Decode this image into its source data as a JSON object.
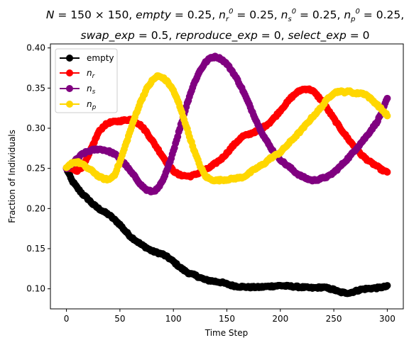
{
  "chart_data": {
    "type": "line",
    "title_line1": "N = 150 × 150, empty = 0.25, n_r^0 = 0.25, n_s^0 = 0.25, n_p^0 = 0.25,",
    "title_line2": "swap_exp = 0.5, reproduce_exp = 0, select_exp = 0",
    "xlabel": "Time Step",
    "ylabel": "Fraction of Individuals",
    "xlim": [
      -15,
      315
    ],
    "ylim": [
      0.075,
      0.405
    ],
    "xticks": [
      0,
      50,
      100,
      150,
      200,
      250,
      300
    ],
    "yticks": [
      0.1,
      0.15,
      0.2,
      0.25,
      0.3,
      0.35,
      0.4
    ],
    "ytick_labels": [
      "0.10",
      "0.15",
      "0.20",
      "0.25",
      "0.30",
      "0.35",
      "0.40"
    ],
    "grid": false,
    "legend_position": "top-left",
    "x": [
      0,
      300
    ],
    "series": [
      {
        "name": "empty",
        "color": "#000000",
        "keypoints": [
          [
            0,
            0.25
          ],
          [
            5,
            0.235
          ],
          [
            10,
            0.226
          ],
          [
            15,
            0.218
          ],
          [
            20,
            0.212
          ],
          [
            25,
            0.205
          ],
          [
            30,
            0.2
          ],
          [
            35,
            0.196
          ],
          [
            40,
            0.192
          ],
          [
            45,
            0.186
          ],
          [
            50,
            0.18
          ],
          [
            55,
            0.172
          ],
          [
            60,
            0.165
          ],
          [
            65,
            0.16
          ],
          [
            70,
            0.155
          ],
          [
            75,
            0.151
          ],
          [
            80,
            0.147
          ],
          [
            85,
            0.145
          ],
          [
            90,
            0.143
          ],
          [
            95,
            0.139
          ],
          [
            100,
            0.134
          ],
          [
            105,
            0.128
          ],
          [
            110,
            0.123
          ],
          [
            115,
            0.119
          ],
          [
            120,
            0.117
          ],
          [
            125,
            0.114
          ],
          [
            130,
            0.111
          ],
          [
            135,
            0.11
          ],
          [
            140,
            0.109
          ],
          [
            145,
            0.108
          ],
          [
            150,
            0.106
          ],
          [
            155,
            0.104
          ],
          [
            160,
            0.103
          ],
          [
            170,
            0.102
          ],
          [
            180,
            0.102
          ],
          [
            190,
            0.103
          ],
          [
            200,
            0.104
          ],
          [
            210,
            0.103
          ],
          [
            220,
            0.102
          ],
          [
            230,
            0.101
          ],
          [
            240,
            0.102
          ],
          [
            250,
            0.099
          ],
          [
            255,
            0.096
          ],
          [
            260,
            0.095
          ],
          [
            265,
            0.095
          ],
          [
            270,
            0.097
          ],
          [
            275,
            0.099
          ],
          [
            280,
            0.1
          ],
          [
            290,
            0.101
          ],
          [
            300,
            0.103
          ]
        ]
      },
      {
        "name": "n_r",
        "color": "#ff0000",
        "keypoints": [
          [
            0,
            0.25
          ],
          [
            5,
            0.25
          ],
          [
            10,
            0.247
          ],
          [
            15,
            0.252
          ],
          [
            20,
            0.264
          ],
          [
            25,
            0.28
          ],
          [
            30,
            0.295
          ],
          [
            35,
            0.303
          ],
          [
            40,
            0.307
          ],
          [
            45,
            0.308
          ],
          [
            50,
            0.309
          ],
          [
            55,
            0.31
          ],
          [
            60,
            0.311
          ],
          [
            65,
            0.308
          ],
          [
            70,
            0.303
          ],
          [
            75,
            0.295
          ],
          [
            80,
            0.285
          ],
          [
            85,
            0.275
          ],
          [
            90,
            0.265
          ],
          [
            95,
            0.255
          ],
          [
            100,
            0.247
          ],
          [
            105,
            0.242
          ],
          [
            110,
            0.241
          ],
          [
            115,
            0.24
          ],
          [
            120,
            0.242
          ],
          [
            125,
            0.245
          ],
          [
            130,
            0.248
          ],
          [
            135,
            0.252
          ],
          [
            140,
            0.257
          ],
          [
            145,
            0.262
          ],
          [
            150,
            0.269
          ],
          [
            155,
            0.277
          ],
          [
            160,
            0.284
          ],
          [
            165,
            0.29
          ],
          [
            170,
            0.292
          ],
          [
            175,
            0.295
          ],
          [
            180,
            0.297
          ],
          [
            185,
            0.302
          ],
          [
            190,
            0.307
          ],
          [
            195,
            0.314
          ],
          [
            200,
            0.322
          ],
          [
            205,
            0.33
          ],
          [
            210,
            0.338
          ],
          [
            215,
            0.344
          ],
          [
            220,
            0.348
          ],
          [
            225,
            0.349
          ],
          [
            230,
            0.347
          ],
          [
            235,
            0.34
          ],
          [
            240,
            0.332
          ],
          [
            245,
            0.322
          ],
          [
            250,
            0.312
          ],
          [
            255,
            0.302
          ],
          [
            260,
            0.293
          ],
          [
            265,
            0.284
          ],
          [
            270,
            0.276
          ],
          [
            275,
            0.268
          ],
          [
            280,
            0.262
          ],
          [
            285,
            0.257
          ],
          [
            290,
            0.253
          ],
          [
            295,
            0.248
          ],
          [
            300,
            0.245
          ]
        ]
      },
      {
        "name": "n_s",
        "color": "#800080",
        "keypoints": [
          [
            0,
            0.25
          ],
          [
            5,
            0.255
          ],
          [
            10,
            0.262
          ],
          [
            15,
            0.268
          ],
          [
            20,
            0.271
          ],
          [
            25,
            0.273
          ],
          [
            30,
            0.274
          ],
          [
            35,
            0.273
          ],
          [
            40,
            0.271
          ],
          [
            45,
            0.268
          ],
          [
            50,
            0.262
          ],
          [
            55,
            0.255
          ],
          [
            60,
            0.246
          ],
          [
            65,
            0.238
          ],
          [
            70,
            0.229
          ],
          [
            75,
            0.223
          ],
          [
            80,
            0.221
          ],
          [
            85,
            0.224
          ],
          [
            90,
            0.234
          ],
          [
            95,
            0.251
          ],
          [
            100,
            0.272
          ],
          [
            105,
            0.295
          ],
          [
            110,
            0.318
          ],
          [
            115,
            0.34
          ],
          [
            120,
            0.358
          ],
          [
            125,
            0.372
          ],
          [
            130,
            0.382
          ],
          [
            135,
            0.388
          ],
          [
            140,
            0.389
          ],
          [
            145,
            0.386
          ],
          [
            150,
            0.38
          ],
          [
            155,
            0.371
          ],
          [
            160,
            0.36
          ],
          [
            165,
            0.347
          ],
          [
            170,
            0.332
          ],
          [
            175,
            0.317
          ],
          [
            180,
            0.302
          ],
          [
            185,
            0.289
          ],
          [
            190,
            0.278
          ],
          [
            195,
            0.268
          ],
          [
            200,
            0.261
          ],
          [
            205,
            0.255
          ],
          [
            210,
            0.25
          ],
          [
            215,
            0.244
          ],
          [
            220,
            0.24
          ],
          [
            225,
            0.237
          ],
          [
            230,
            0.235
          ],
          [
            235,
            0.236
          ],
          [
            240,
            0.238
          ],
          [
            245,
            0.24
          ],
          [
            250,
            0.245
          ],
          [
            255,
            0.251
          ],
          [
            260,
            0.258
          ],
          [
            265,
            0.265
          ],
          [
            270,
            0.273
          ],
          [
            275,
            0.281
          ],
          [
            280,
            0.289
          ],
          [
            285,
            0.298
          ],
          [
            290,
            0.307
          ],
          [
            295,
            0.32
          ],
          [
            300,
            0.337
          ]
        ]
      },
      {
        "name": "n_p",
        "color": "#ffd700",
        "keypoints": [
          [
            0,
            0.25
          ],
          [
            5,
            0.257
          ],
          [
            10,
            0.258
          ],
          [
            15,
            0.255
          ],
          [
            20,
            0.25
          ],
          [
            25,
            0.246
          ],
          [
            30,
            0.24
          ],
          [
            35,
            0.237
          ],
          [
            40,
            0.236
          ],
          [
            45,
            0.242
          ],
          [
            50,
            0.258
          ],
          [
            55,
            0.278
          ],
          [
            60,
            0.298
          ],
          [
            65,
            0.318
          ],
          [
            70,
            0.335
          ],
          [
            75,
            0.349
          ],
          [
            80,
            0.359
          ],
          [
            85,
            0.365
          ],
          [
            90,
            0.363
          ],
          [
            95,
            0.357
          ],
          [
            100,
            0.347
          ],
          [
            105,
            0.331
          ],
          [
            110,
            0.311
          ],
          [
            115,
            0.29
          ],
          [
            120,
            0.27
          ],
          [
            125,
            0.253
          ],
          [
            130,
            0.24
          ],
          [
            135,
            0.236
          ],
          [
            140,
            0.235
          ],
          [
            150,
            0.236
          ],
          [
            155,
            0.237
          ],
          [
            160,
            0.238
          ],
          [
            165,
            0.239
          ],
          [
            170,
            0.243
          ],
          [
            175,
            0.248
          ],
          [
            180,
            0.252
          ],
          [
            185,
            0.256
          ],
          [
            190,
            0.262
          ],
          [
            195,
            0.266
          ],
          [
            200,
            0.27
          ],
          [
            205,
            0.277
          ],
          [
            210,
            0.284
          ],
          [
            215,
            0.291
          ],
          [
            220,
            0.298
          ],
          [
            225,
            0.306
          ],
          [
            230,
            0.314
          ],
          [
            235,
            0.321
          ],
          [
            240,
            0.329
          ],
          [
            245,
            0.338
          ],
          [
            250,
            0.344
          ],
          [
            255,
            0.346
          ],
          [
            260,
            0.345
          ],
          [
            265,
            0.346
          ],
          [
            270,
            0.343
          ],
          [
            275,
            0.344
          ],
          [
            280,
            0.342
          ],
          [
            285,
            0.336
          ],
          [
            290,
            0.33
          ],
          [
            295,
            0.323
          ],
          [
            300,
            0.316
          ]
        ]
      }
    ]
  }
}
